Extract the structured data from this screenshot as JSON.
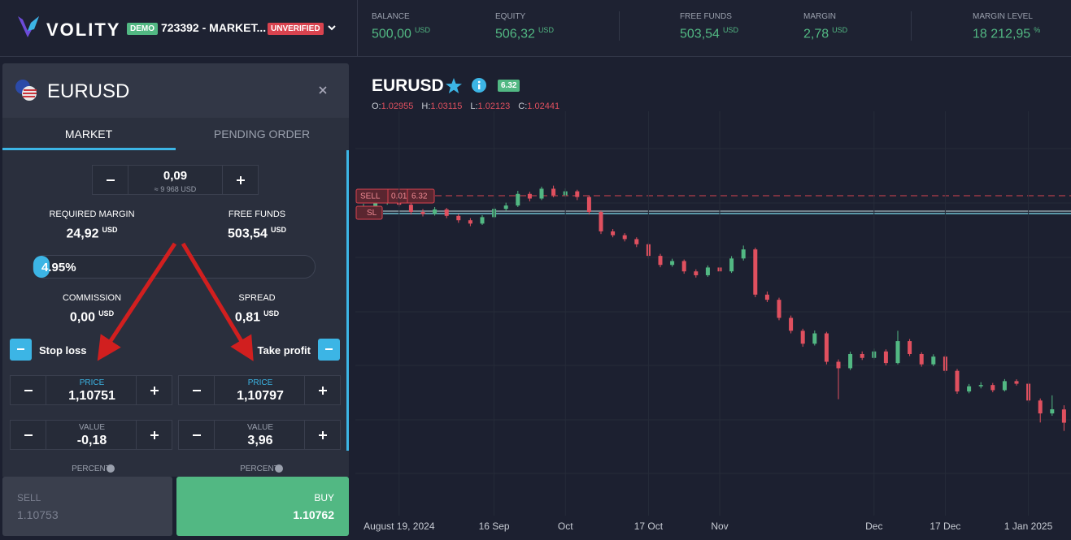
{
  "header": {
    "brand": "VOLITY",
    "account_type": "DEMO",
    "account": "723392 - MARKET...",
    "status": "UNVERIFIED",
    "stats": [
      {
        "label": "BALANCE",
        "value": "500,00",
        "unit": "USD"
      },
      {
        "label": "EQUITY",
        "value": "506,32",
        "unit": "USD"
      },
      {
        "label": "FREE FUNDS",
        "value": "503,54",
        "unit": "USD"
      },
      {
        "label": "MARGIN",
        "value": "2,78",
        "unit": "USD"
      },
      {
        "label": "MARGIN LEVEL",
        "value": "18 212,95",
        "unit": "%"
      }
    ]
  },
  "order_panel": {
    "symbol": "EURUSD",
    "tabs": [
      "MARKET",
      "PENDING ORDER"
    ],
    "volume": {
      "value": "0,09",
      "note": "≈ 9 968 USD"
    },
    "required_margin": {
      "label": "REQUIRED MARGIN",
      "value": "24,92",
      "unit": "USD"
    },
    "free_funds": {
      "label": "FREE FUNDS",
      "value": "503,54",
      "unit": "USD"
    },
    "margin_percent": "4.95%",
    "commission": {
      "label": "COMMISSION",
      "value": "0,00",
      "unit": "USD"
    },
    "spread": {
      "label": "SPREAD",
      "value": "0,81",
      "unit": "USD"
    },
    "stop_loss": {
      "label": "Stop loss",
      "price_label": "PRICE",
      "price": "1,10751",
      "value_label": "VALUE",
      "value": "-0,18",
      "percent_label": "PERCENT"
    },
    "take_profit": {
      "label": "Take profit",
      "price_label": "PRICE",
      "price": "1,10797",
      "value_label": "VALUE",
      "value": "3,96",
      "percent_label": "PERCENT"
    },
    "sell": {
      "label": "SELL",
      "price": "1.10753"
    },
    "buy": {
      "label": "BUY",
      "price": "1.10762"
    }
  },
  "chart": {
    "symbol": "EURUSD",
    "badge": "6.32",
    "ohlc": [
      {
        "label": "O:",
        "value": "1.02955"
      },
      {
        "label": "H:",
        "value": "1.03115"
      },
      {
        "label": "L:",
        "value": "1.02123"
      },
      {
        "label": "C:",
        "value": "1.02441"
      }
    ],
    "order_line": {
      "side": "SELL",
      "volume": "0.01",
      "pnl": "6.32"
    },
    "sl_tag": "SL",
    "ylim": [
      0.99,
      1.145
    ],
    "xticks": [
      {
        "value": 3,
        "label": "August 19, 2024"
      },
      {
        "value": 11,
        "label": "16 Sep"
      },
      {
        "value": 17,
        "label": "Oct"
      },
      {
        "value": 24,
        "label": "17 Oct"
      },
      {
        "value": 30,
        "label": "Nov"
      },
      {
        "value": 43,
        "label": "Dec"
      },
      {
        "value": 49,
        "label": "17 Dec"
      },
      {
        "value": 56,
        "label": "1 Jan 2025"
      }
    ],
    "candles": {
      "open": [
        1.1065,
        1.108,
        1.1095,
        1.1102,
        1.1088,
        1.106,
        1.1052,
        1.107,
        1.1045,
        1.1028,
        1.1015,
        1.104,
        1.1072,
        1.1085,
        1.113,
        1.1112,
        1.115,
        1.1125,
        1.114,
        1.1118,
        1.106,
        1.0985,
        1.097,
        1.0955,
        1.0935,
        1.089,
        1.0855,
        1.087,
        1.083,
        1.0815,
        1.0845,
        1.083,
        1.088,
        1.0915,
        1.074,
        1.072,
        1.065,
        1.06,
        1.055,
        1.059,
        1.048,
        1.0455,
        1.051,
        1.0495,
        1.052,
        1.0475,
        1.056,
        1.051,
        1.047,
        1.05,
        1.0445,
        1.0365,
        1.0385,
        1.039,
        1.037,
        1.0405,
        1.0395,
        1.033,
        1.028,
        1.02955
      ],
      "high": [
        1.1092,
        1.1104,
        1.1115,
        1.111,
        1.1094,
        1.1071,
        1.1079,
        1.1076,
        1.1052,
        1.1036,
        1.1048,
        1.1081,
        1.1096,
        1.1142,
        1.1138,
        1.1158,
        1.1162,
        1.1151,
        1.1146,
        1.1124,
        1.1066,
        1.0994,
        1.0978,
        1.0962,
        1.0941,
        1.0898,
        1.0879,
        1.0876,
        1.0838,
        1.0853,
        1.0851,
        1.0889,
        1.093,
        1.0922,
        1.0752,
        1.0728,
        1.0659,
        1.0608,
        1.0601,
        1.0596,
        1.0489,
        1.0519,
        1.052,
        1.0531,
        1.0528,
        1.06,
        1.0568,
        1.0517,
        1.0509,
        1.0507,
        1.0452,
        1.0394,
        1.0401,
        1.0398,
        1.0413,
        1.0412,
        1.0401,
        1.0338,
        1.035,
        1.03115
      ],
      "low": [
        1.1058,
        1.1071,
        1.1088,
        1.108,
        1.105,
        1.1043,
        1.1046,
        1.1036,
        1.1018,
        1.1005,
        1.101,
        1.1035,
        1.1064,
        1.1079,
        1.1101,
        1.1106,
        1.1117,
        1.1118,
        1.1106,
        1.105,
        1.0975,
        1.0962,
        1.0946,
        1.0924,
        1.0879,
        1.0846,
        1.0848,
        1.0821,
        1.0806,
        1.0809,
        1.0822,
        1.0824,
        1.0872,
        1.073,
        1.0711,
        1.0641,
        1.059,
        1.0538,
        1.0543,
        1.047,
        1.0335,
        1.0448,
        1.0487,
        1.0489,
        1.0466,
        1.047,
        1.0502,
        1.0461,
        1.0463,
        1.0436,
        1.0356,
        1.0358,
        1.0377,
        1.0362,
        1.0365,
        1.0388,
        1.0321,
        1.0245,
        1.0271,
        1.02123
      ],
      "close": [
        1.108,
        1.1095,
        1.1102,
        1.1088,
        1.106,
        1.1052,
        1.107,
        1.1045,
        1.1028,
        1.1015,
        1.104,
        1.1072,
        1.1085,
        1.113,
        1.1112,
        1.115,
        1.1125,
        1.114,
        1.1118,
        1.106,
        1.0985,
        1.097,
        1.0955,
        1.0935,
        1.089,
        1.0855,
        1.087,
        1.083,
        1.0815,
        1.0845,
        1.083,
        1.088,
        1.0915,
        1.074,
        1.072,
        1.065,
        1.06,
        1.055,
        1.059,
        1.048,
        1.0455,
        1.051,
        1.0495,
        1.052,
        1.0475,
        1.056,
        1.051,
        1.047,
        1.05,
        1.0445,
        1.0365,
        1.0385,
        1.039,
        1.037,
        1.0405,
        1.0395,
        1.033,
        1.028,
        1.0296,
        1.02441
      ]
    }
  }
}
